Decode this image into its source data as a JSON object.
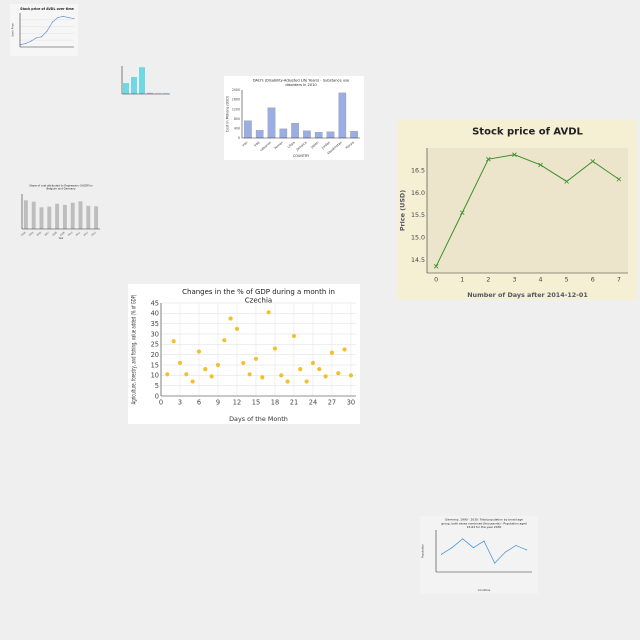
{
  "colors": {
    "background": "#efefef"
  },
  "chart_data": [
    {
      "id": "c1",
      "type": "line",
      "title": "Stock price of AVDL over time",
      "xlabel": "",
      "ylabel": "Stock Price",
      "x": [
        0,
        1,
        2,
        3,
        4,
        5,
        6,
        7,
        8,
        9,
        10
      ],
      "values": [
        10,
        11,
        13,
        16,
        17,
        22,
        30,
        34,
        35,
        34,
        33
      ],
      "ylim": [
        8,
        38
      ],
      "color": "#6f8fd6",
      "background": "#f6f6f6",
      "grid": true
    },
    {
      "id": "c2",
      "type": "bar",
      "title": "",
      "categories": [
        "",
        "",
        "",
        "",
        "",
        ""
      ],
      "values": [
        18,
        28,
        44,
        2,
        1,
        1
      ],
      "ylim": [
        0,
        46
      ],
      "color": "#6fd8e3",
      "background": "#efefef",
      "grid": false
    },
    {
      "id": "c3",
      "type": "bar",
      "title": "DALYs (Disability-Adjusted Life Years) - Substance use disorders in 2010",
      "xlabel": "COUNTRY",
      "ylabel": "Cost in Millions (USD)",
      "categories": [
        "Iran",
        "Iraq",
        "Lebanon",
        "Yemen",
        "Libya",
        "Jamaica",
        "Japan",
        "Jordan",
        "Kazakhstan",
        "Kenya"
      ],
      "values": [
        720,
        320,
        1260,
        380,
        620,
        300,
        240,
        260,
        1880,
        280
      ],
      "ylim": [
        0,
        2000
      ],
      "yticks": [
        0,
        400,
        800,
        1200,
        1600,
        2000
      ],
      "color": "#9aaee3",
      "background": "#ffffff",
      "grid": false
    },
    {
      "id": "c4",
      "type": "line",
      "title": "Stock price of AVDL",
      "xlabel": "Number of Days after 2014-12-01",
      "ylabel": "Price (USD)",
      "x": [
        0,
        1,
        2,
        3,
        4,
        5,
        6,
        7
      ],
      "values": [
        14.35,
        15.55,
        16.75,
        16.85,
        16.62,
        16.25,
        16.7,
        16.3
      ],
      "xlim": [
        -0.35,
        7.35
      ],
      "ylim": [
        14.2,
        17.0
      ],
      "xticks": [
        0,
        1,
        2,
        3,
        4,
        5,
        6,
        7
      ],
      "yticks": [
        14.5,
        15.0,
        15.5,
        16.0,
        16.5
      ],
      "ytick_decimals": 1,
      "color": "#3d8f2a",
      "marker": "x",
      "background": "#f5efd4",
      "grid": false
    },
    {
      "id": "c5",
      "type": "bar",
      "title": "Share of cost attributed to Depression (%GDP) in Belgium and Germany",
      "xlabel": "Year",
      "ylabel": "",
      "categories": [
        "2004",
        "2005",
        "2006",
        "2007",
        "2008",
        "2009",
        "2010",
        "2011",
        "2012",
        "2013"
      ],
      "values": [
        0.82,
        0.78,
        0.62,
        0.64,
        0.72,
        0.69,
        0.75,
        0.79,
        0.66,
        0.65
      ],
      "ylim": [
        0,
        1.0
      ],
      "color": "#bdbdbd",
      "background": "#efefef",
      "grid": false
    },
    {
      "id": "c6",
      "type": "scatter",
      "title": "Changes in the % of GDP during a month in Czechia",
      "xlabel": "Days of the Month",
      "ylabel": "Agriculture, forestry, and fishing, value added (% of GDP)",
      "x": [
        1,
        2,
        3,
        4,
        5,
        6,
        7,
        8,
        9,
        10,
        11,
        12,
        13,
        14,
        15,
        16,
        17,
        18,
        19,
        20,
        21,
        22,
        23,
        24,
        25,
        26,
        27,
        28,
        29,
        30
      ],
      "values": [
        10.5,
        26.5,
        16,
        10.5,
        7,
        21.5,
        13,
        9.5,
        15,
        27,
        37.5,
        32.5,
        16,
        10.5,
        18,
        9,
        40.5,
        23,
        10,
        7,
        29,
        13,
        7,
        16,
        13,
        9.5,
        21,
        11,
        22.5,
        10
      ],
      "xlim": [
        0,
        30.8
      ],
      "ylim": [
        0,
        45
      ],
      "xticks": [
        0,
        3,
        6,
        9,
        12,
        15,
        18,
        21,
        24,
        27,
        30
      ],
      "yticks": [
        0,
        5,
        10,
        15,
        20,
        25,
        30,
        35,
        40,
        45
      ],
      "color": "#f3bf2b",
      "background": "#ffffff",
      "grid": true
    },
    {
      "id": "c7",
      "type": "line",
      "title": "Germany, 1990 - 2030: Total population by broad age group, both sexes combined (thousands) - Population aged 15-64 for the year 2030",
      "xlabel": "Countries",
      "ylabel": "Population",
      "categories": [
        "",
        "",
        "",
        "",
        "",
        "",
        "",
        "",
        ""
      ],
      "values": [
        36,
        42,
        50,
        42,
        48,
        28,
        38,
        44,
        40
      ],
      "ylim": [
        20,
        58
      ],
      "color": "#3d8fd6",
      "background": "#f3f3f3",
      "grid": false
    }
  ]
}
